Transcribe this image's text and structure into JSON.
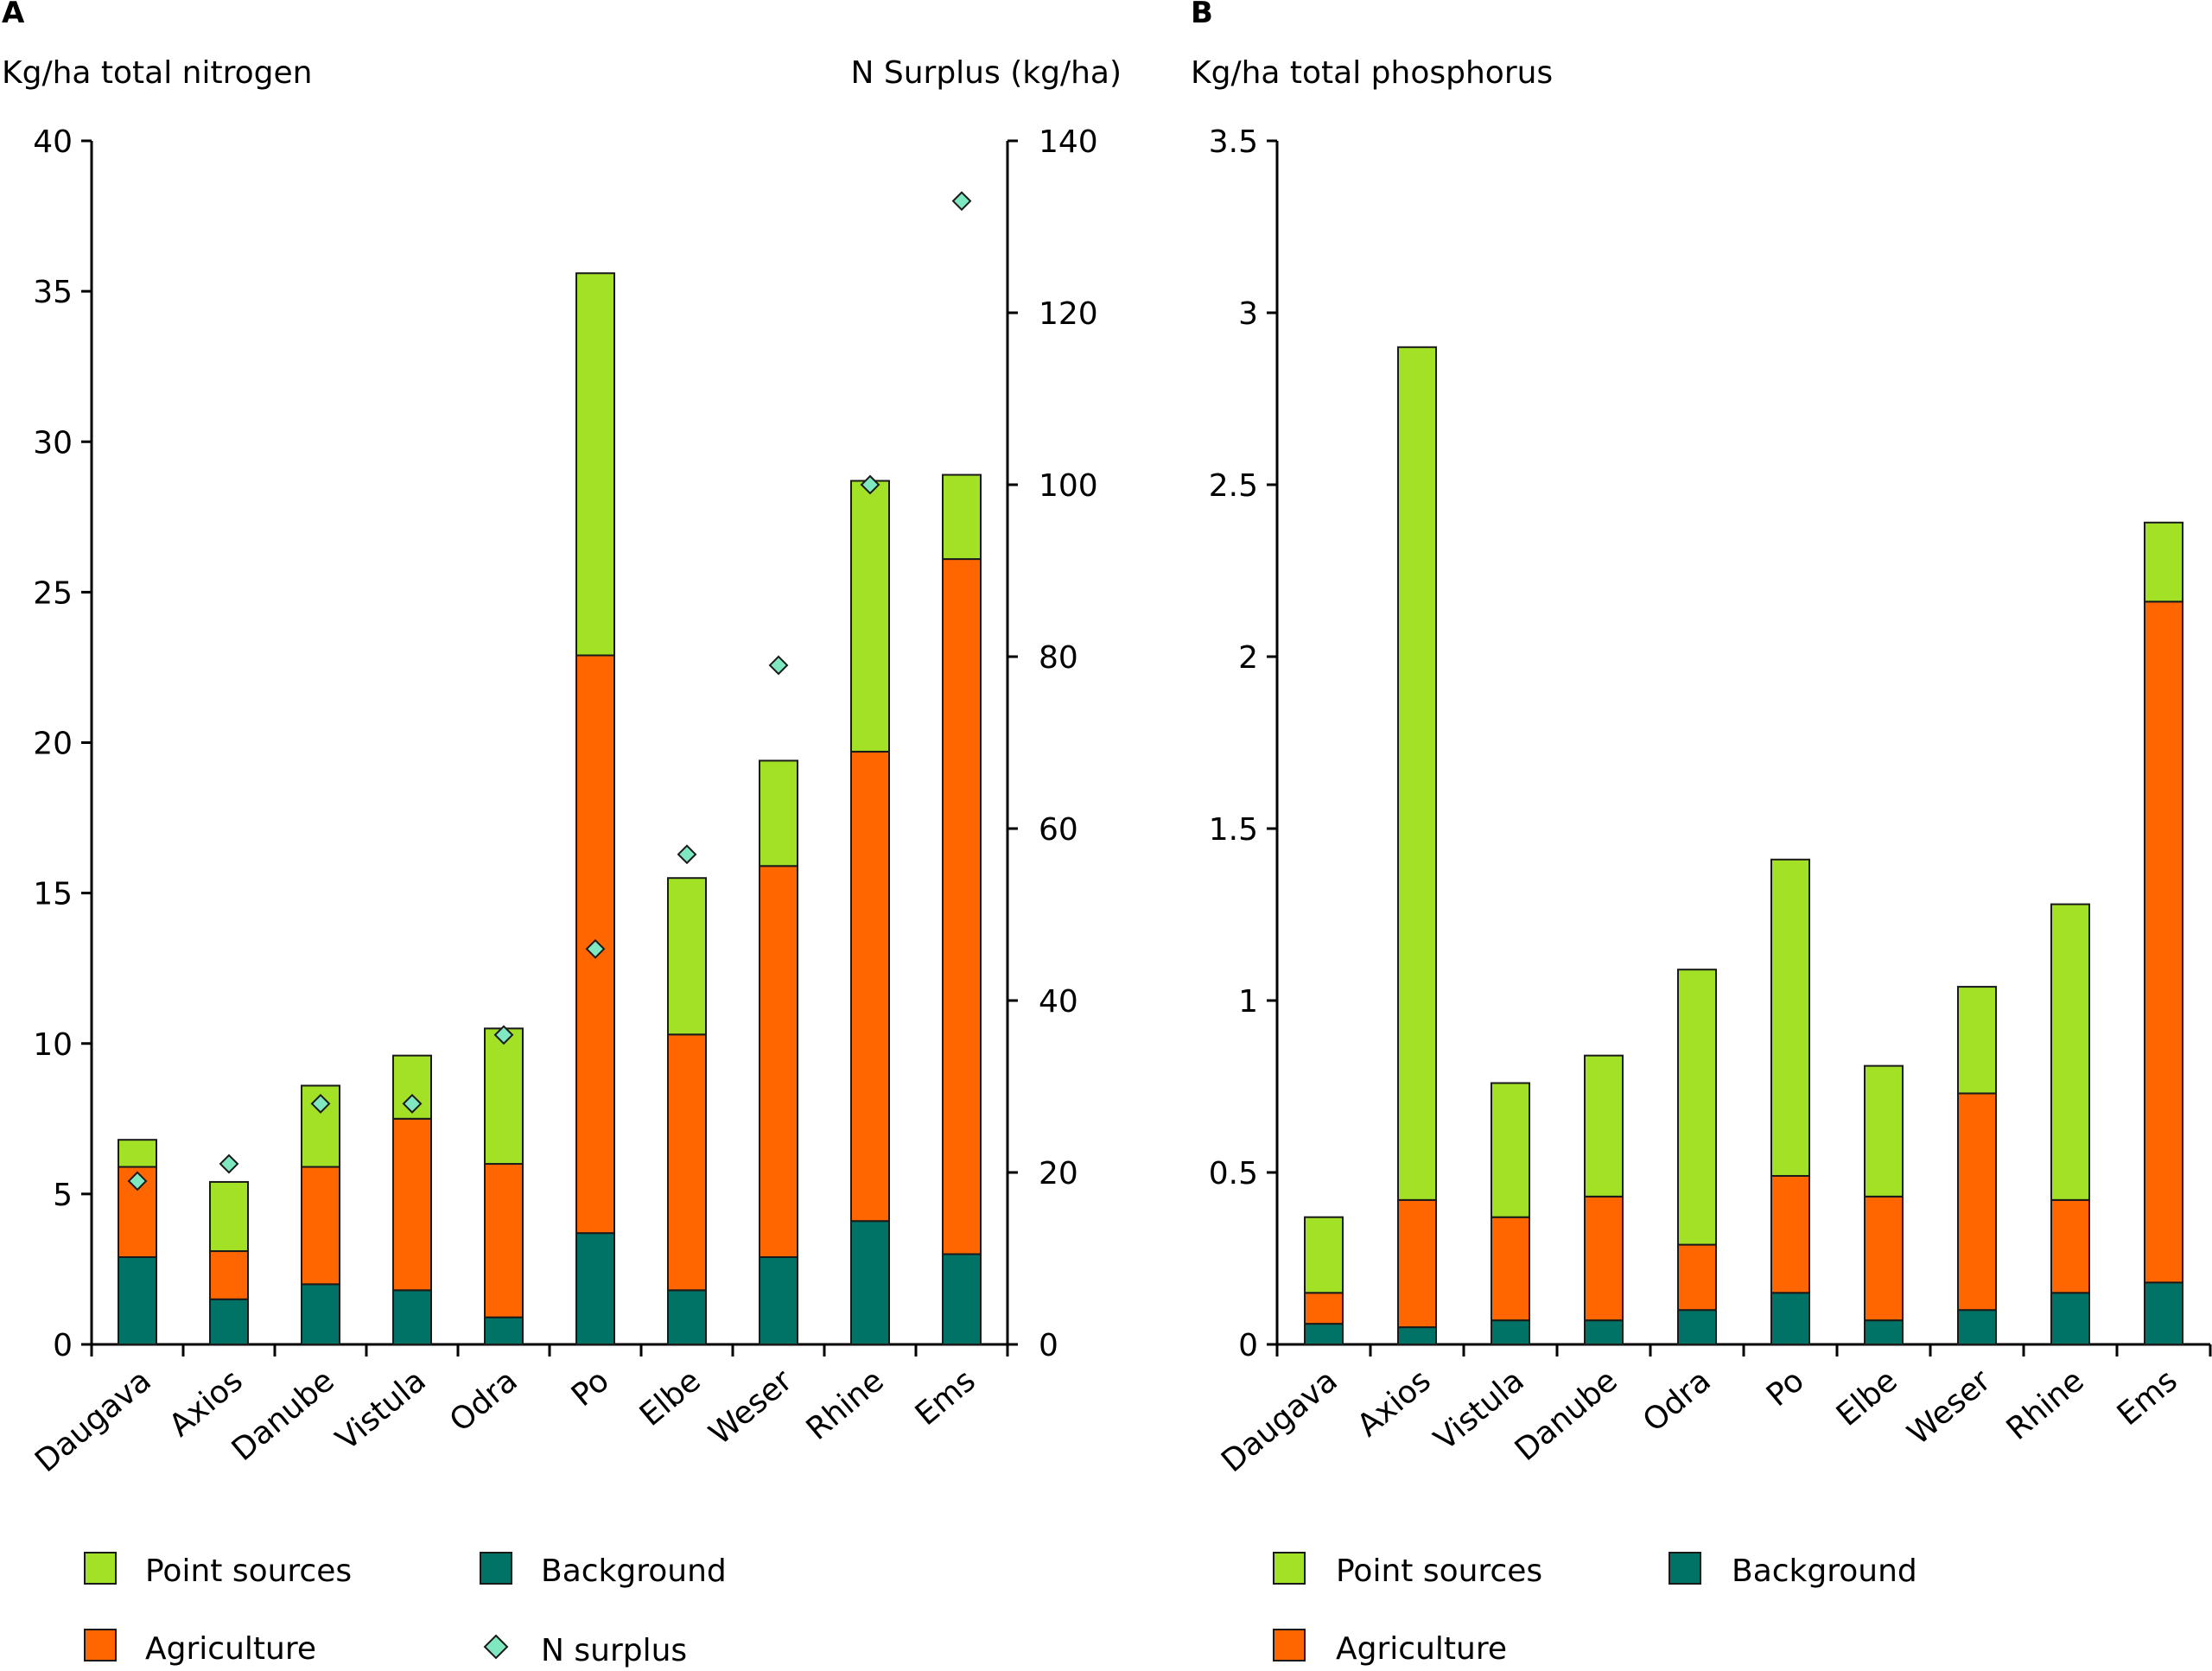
{
  "colors": {
    "point_sources": "#a2e126",
    "agriculture": "#ff6600",
    "background": "#007366",
    "n_surplus": "#7fe8c0",
    "outline": "#1a1a1a",
    "axis": "#000000"
  },
  "chart_data": [
    {
      "type": "bar",
      "stacked": true,
      "panel_label": "A",
      "ylabel": "Kg/ha total nitrogen",
      "y2label": "N Surplus (kg/ha)",
      "ylim": [
        0,
        40
      ],
      "y2lim": [
        0,
        140
      ],
      "yticks": [
        "0",
        "5",
        "10",
        "15",
        "20",
        "25",
        "30",
        "35",
        "40"
      ],
      "y2ticks": [
        "0",
        "20",
        "40",
        "60",
        "80",
        "100",
        "120",
        "140"
      ],
      "categories": [
        "Daugava",
        "Axios",
        "Danube",
        "Vistula",
        "Odra",
        "Po",
        "Elbe",
        "Weser",
        "Rhine",
        "Ems"
      ],
      "series": [
        {
          "name": "Background",
          "values": [
            2.9,
            1.5,
            2.0,
            1.8,
            0.9,
            3.7,
            1.8,
            2.9,
            4.1,
            3.0
          ]
        },
        {
          "name": "Agriculture",
          "values": [
            3.0,
            1.6,
            3.9,
            5.7,
            5.1,
            19.2,
            8.5,
            13.0,
            15.6,
            23.1
          ]
        },
        {
          "name": "Point sources",
          "values": [
            0.9,
            2.3,
            2.7,
            2.1,
            4.5,
            12.7,
            5.2,
            3.5,
            9.0,
            2.8
          ]
        }
      ],
      "secondary_series": {
        "name": "N surplus",
        "type": "scatter",
        "axis": "right",
        "values": [
          19,
          21,
          28,
          28,
          36,
          46,
          57,
          79,
          100,
          133
        ]
      },
      "legend": {
        "position": "bottom",
        "items": [
          "Point sources",
          "Background",
          "Agriculture",
          "N surplus"
        ]
      },
      "grid": false
    },
    {
      "type": "bar",
      "stacked": true,
      "panel_label": "B",
      "ylabel": "Kg/ha total phosphorus",
      "ylim": [
        0,
        3.5
      ],
      "yticks": [
        "0",
        "0.5",
        "1",
        "1.5",
        "2",
        "2.5",
        "3",
        "3.5"
      ],
      "categories": [
        "Daugava",
        "Axios",
        "Vistula",
        "Danube",
        "Odra",
        "Po",
        "Elbe",
        "Weser",
        "Rhine",
        "Ems"
      ],
      "series": [
        {
          "name": "Background",
          "values": [
            0.06,
            0.05,
            0.07,
            0.07,
            0.1,
            0.15,
            0.07,
            0.1,
            0.15,
            0.18
          ]
        },
        {
          "name": "Agriculture",
          "values": [
            0.09,
            0.37,
            0.3,
            0.36,
            0.19,
            0.34,
            0.36,
            0.63,
            0.27,
            1.98
          ]
        },
        {
          "name": "Point sources",
          "values": [
            0.22,
            2.48,
            0.39,
            0.41,
            0.8,
            0.92,
            0.38,
            0.31,
            0.86,
            0.23
          ]
        }
      ],
      "legend": {
        "position": "bottom",
        "items": [
          "Point sources",
          "Background",
          "Agriculture"
        ]
      },
      "grid": false
    }
  ]
}
